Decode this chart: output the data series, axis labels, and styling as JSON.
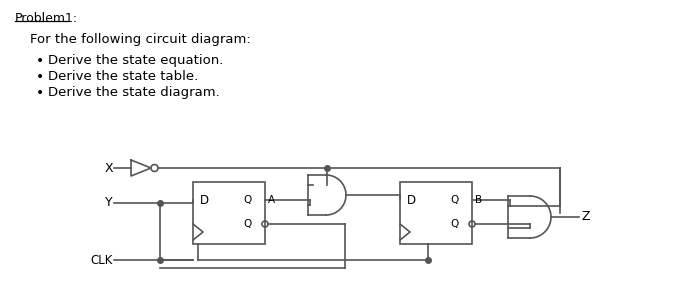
{
  "title": "Problem1:",
  "bg_color": "#ffffff",
  "text_color": "#000000",
  "line_color": "#555555",
  "header": "For the following circuit diagram:",
  "bullets": [
    "Derive the state equation.",
    "Derive the state table.",
    "Derive the state diagram."
  ],
  "lw": 1.2
}
